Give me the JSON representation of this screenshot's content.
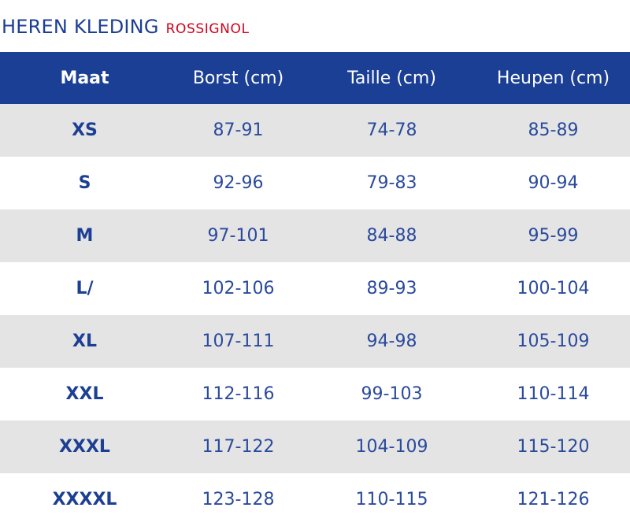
{
  "title": {
    "main": "HEREN KLEDING",
    "brand": "ROSSIGNOL"
  },
  "table": {
    "headers": [
      "Maat",
      "Borst (cm)",
      "Taille (cm)",
      "Heupen (cm)"
    ],
    "rows": [
      [
        "XS",
        "87-91",
        "74-78",
        "85-89"
      ],
      [
        "S",
        "92-96",
        "79-83",
        "90-94"
      ],
      [
        "M",
        "97-101",
        "84-88",
        "95-99"
      ],
      [
        "L/",
        "102-106",
        "89-93",
        "100-104"
      ],
      [
        "XL",
        "107-111",
        "94-98",
        "105-109"
      ],
      [
        "XXL",
        "112-116",
        "99-103",
        "110-114"
      ],
      [
        "XXXL",
        "117-122",
        "104-109",
        "115-120"
      ],
      [
        "XXXXL",
        "123-128",
        "110-115",
        "121-126"
      ]
    ]
  },
  "colors": {
    "header_bg": "#1b3f94",
    "text_blue": "#1c3f94",
    "brand_red": "#d0021b",
    "stripe_gray": "#e4e4e4"
  }
}
